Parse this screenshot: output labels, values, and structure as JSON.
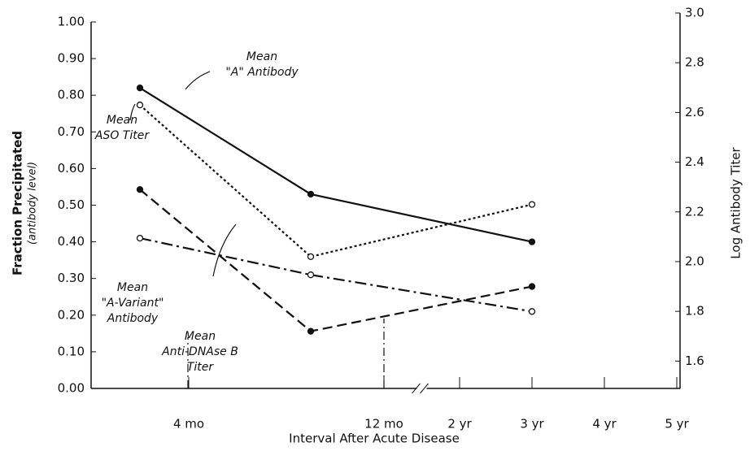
{
  "chart_data": {
    "type": "line",
    "x_label": "Interval After Acute Disease",
    "y_label": "Fraction Precipitated",
    "y_label_sub": "(antibody level)",
    "y2_label": "Log Antibody Titer",
    "x": [
      2,
      9,
      36
    ],
    "xlim": [
      0,
      60
    ],
    "x_break": [
      12,
      24
    ],
    "xticks": [
      {
        "value": 4,
        "label": "4 mo"
      },
      {
        "value": 12,
        "label": "12 mo"
      },
      {
        "value": 24,
        "label": "2 yr"
      },
      {
        "value": 36,
        "label": "3 yr"
      },
      {
        "value": 48,
        "label": "4 yr"
      },
      {
        "value": 60,
        "label": "5 yr"
      }
    ],
    "ylim": [
      0,
      1
    ],
    "yticks": [
      {
        "value": 0,
        "label": "0.00"
      },
      {
        "value": 0.1,
        "label": "0.10"
      },
      {
        "value": 0.2,
        "label": "0.20"
      },
      {
        "value": 0.3,
        "label": "0.30"
      },
      {
        "value": 0.4,
        "label": "0.40"
      },
      {
        "value": 0.5,
        "label": "0.50"
      },
      {
        "value": 0.6,
        "label": "0.60"
      },
      {
        "value": 0.7,
        "label": "0.70"
      },
      {
        "value": 0.8,
        "label": "0.80"
      },
      {
        "value": 0.9,
        "label": "0.90"
      },
      {
        "value": 1,
        "label": "1.00"
      }
    ],
    "y2lim": [
      1.49,
      3.0
    ],
    "y2ticks": [
      1.6,
      1.8,
      {
        "value": 2,
        "label": "2.0"
      },
      2.2,
      2.4,
      2.6,
      2.8,
      {
        "value": 3,
        "label": "3.0"
      }
    ],
    "series": [
      {
        "name": [
          "Mean",
          "\"A\" Antibody"
        ],
        "color": "#111111",
        "dash": "solid",
        "marker": "filled",
        "values": [
          0.82,
          0.53,
          0.4
        ]
      },
      {
        "name": [
          "Mean",
          "ASO Titer"
        ],
        "color": "#111111",
        "dash": "dotted",
        "marker": "open",
        "axis": "y2",
        "values": [
          2.63,
          2.02,
          2.23
        ]
      },
      {
        "name": [
          "Mean",
          "\"A-Variant\"",
          "Antibody"
        ],
        "color": "#111111",
        "dash": "dashdot",
        "marker": "open",
        "values": [
          0.41,
          0.31,
          0.21
        ]
      },
      {
        "name": [
          "Mean",
          "Anti-DNAse B",
          "Titer"
        ],
        "color": "#111111",
        "dash": "dashed",
        "marker": "filled",
        "axis": "y2",
        "values": [
          2.29,
          1.72,
          1.9
        ]
      }
    ]
  }
}
